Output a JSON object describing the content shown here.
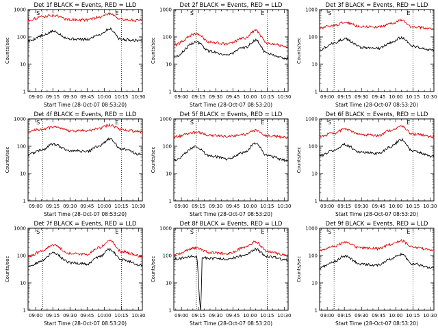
{
  "chart_data": [
    {
      "type": "line",
      "title": "Det 1f BLACK = Events, RED = LLD",
      "ylabel": "Counts/sec",
      "xlabel": "Start Time (28-Oct-07 08:53:20)",
      "x_ticks": [
        "09:00",
        "09:15",
        "09:30",
        "09:45",
        "10:00",
        "10:15",
        "10:30"
      ],
      "y_ticks": [
        "1",
        "10",
        "100",
        "1000"
      ],
      "ylim": [
        1,
        1000
      ],
      "y_scale": "log",
      "x_range": [
        "08:53:20",
        "10:33:20"
      ],
      "markers": [
        {
          "time": "09:06",
          "label": "S"
        },
        {
          "time": "10:15",
          "label": "E"
        }
      ],
      "series": [
        {
          "name": "Events",
          "color": "#000000",
          "time": [
            "08:53",
            "09:06",
            "09:15",
            "09:30",
            "09:45",
            "09:55",
            "10:05",
            "10:15",
            "10:33"
          ],
          "values": [
            70,
            110,
            160,
            85,
            80,
            120,
            195,
            80,
            75
          ]
        },
        {
          "name": "LLD",
          "color": "#e00000",
          "time": [
            "08:53",
            "09:06",
            "09:15",
            "09:30",
            "09:45",
            "09:55",
            "10:05",
            "10:15",
            "10:33"
          ],
          "values": [
            400,
            550,
            620,
            430,
            420,
            520,
            720,
            430,
            400
          ]
        }
      ]
    },
    {
      "type": "line",
      "title": "Det 2f BLACK = Events, RED = LLD",
      "ylabel": "Counts/sec",
      "xlabel": "Start Time (28-Oct-07 08:53:20)",
      "x_ticks": [
        "09:00",
        "09:15",
        "09:30",
        "09:45",
        "10:00",
        "10:15",
        "10:30"
      ],
      "y_ticks": [
        "1",
        "10",
        "100",
        "1000"
      ],
      "ylim": [
        1,
        1000
      ],
      "y_scale": "log",
      "x_range": [
        "08:53:20",
        "10:33:20"
      ],
      "markers": [
        {
          "time": "09:13",
          "label": "S"
        },
        {
          "time": "10:15",
          "label": "E"
        }
      ],
      "series": [
        {
          "name": "Events",
          "color": "#000000",
          "time": [
            "08:53",
            "09:13",
            "09:25",
            "09:40",
            "09:55",
            "10:05",
            "10:15",
            "10:33"
          ],
          "values": [
            18,
            65,
            30,
            22,
            40,
            75,
            25,
            16
          ]
        },
        {
          "name": "LLD",
          "color": "#e00000",
          "time": [
            "08:53",
            "09:13",
            "09:25",
            "09:40",
            "09:55",
            "10:05",
            "10:15",
            "10:33"
          ],
          "values": [
            50,
            130,
            65,
            55,
            90,
            170,
            60,
            45
          ]
        }
      ]
    },
    {
      "type": "line",
      "title": "Det 3f BLACK = Events, RED = LLD",
      "ylabel": "Counts/sec",
      "xlabel": "Start Time (28-Oct-07 08:53:20)",
      "x_ticks": [
        "09:00",
        "09:15",
        "09:30",
        "09:45",
        "10:00",
        "10:15",
        "10:30"
      ],
      "y_ticks": [
        "1",
        "10",
        "100",
        "1000"
      ],
      "ylim": [
        1,
        1000
      ],
      "y_scale": "log",
      "x_range": [
        "08:53:20",
        "10:33:20"
      ],
      "markers": [
        {
          "time": "09:06",
          "label": "S"
        },
        {
          "time": "10:15",
          "label": "E"
        }
      ],
      "series": [
        {
          "name": "Events",
          "color": "#000000",
          "time": [
            "08:53",
            "09:06",
            "09:15",
            "09:30",
            "09:45",
            "09:55",
            "10:05",
            "10:15",
            "10:33"
          ],
          "values": [
            35,
            60,
            85,
            42,
            38,
            60,
            95,
            45,
            33
          ]
        },
        {
          "name": "LLD",
          "color": "#e00000",
          "time": [
            "08:53",
            "09:06",
            "09:15",
            "09:30",
            "09:45",
            "09:55",
            "10:05",
            "10:15",
            "10:33"
          ],
          "values": [
            210,
            260,
            340,
            240,
            230,
            300,
            400,
            230,
            200
          ]
        }
      ]
    },
    {
      "type": "line",
      "title": "Det 4f BLACK = Events, RED = LLD",
      "ylabel": "Counts/sec",
      "xlabel": "Start Time (28-Oct-07 08:53:20)",
      "x_ticks": [
        "09:00",
        "09:15",
        "09:30",
        "09:45",
        "10:00",
        "10:15",
        "10:30"
      ],
      "y_ticks": [
        "1",
        "10",
        "100",
        "1000"
      ],
      "ylim": [
        1,
        1000
      ],
      "y_scale": "log",
      "x_range": [
        "08:53:20",
        "10:33:20"
      ],
      "markers": [
        {
          "time": "09:06",
          "label": "S"
        },
        {
          "time": "10:15",
          "label": "E"
        }
      ],
      "series": [
        {
          "name": "Events",
          "color": "#000000",
          "time": [
            "08:53",
            "09:06",
            "09:15",
            "09:30",
            "09:45",
            "09:55",
            "10:05",
            "10:15",
            "10:33"
          ],
          "values": [
            50,
            75,
            120,
            70,
            65,
            100,
            185,
            80,
            50
          ]
        },
        {
          "name": "LLD",
          "color": "#e00000",
          "time": [
            "08:53",
            "09:06",
            "09:15",
            "09:30",
            "09:45",
            "09:55",
            "10:05",
            "10:15",
            "10:33"
          ],
          "values": [
            350,
            420,
            500,
            370,
            370,
            450,
            600,
            400,
            340
          ]
        }
      ]
    },
    {
      "type": "line",
      "title": "Det 5f BLACK = Events, RED = LLD",
      "ylabel": "Counts/sec",
      "xlabel": "Start Time (28-Oct-07 08:53:20)",
      "x_ticks": [
        "09:00",
        "09:15",
        "09:30",
        "09:45",
        "10:00",
        "10:15",
        "10:30"
      ],
      "y_ticks": [
        "1",
        "10",
        "100",
        "1000"
      ],
      "ylim": [
        1,
        1000
      ],
      "y_scale": "log",
      "x_range": [
        "08:53:20",
        "10:33:20"
      ],
      "markers": [
        {
          "time": "09:13",
          "label": "S"
        },
        {
          "time": "10:15",
          "label": "E"
        }
      ],
      "series": [
        {
          "name": "Events",
          "color": "#000000",
          "time": [
            "08:53",
            "09:13",
            "09:25",
            "09:40",
            "09:55",
            "10:05",
            "10:15",
            "10:33"
          ],
          "values": [
            30,
            95,
            45,
            35,
            60,
            130,
            45,
            30
          ]
        },
        {
          "name": "LLD",
          "color": "#e00000",
          "time": [
            "08:53",
            "09:13",
            "09:25",
            "09:40",
            "09:55",
            "10:05",
            "10:15",
            "10:33"
          ],
          "values": [
            220,
            330,
            250,
            230,
            270,
            380,
            240,
            210
          ]
        }
      ]
    },
    {
      "type": "line",
      "title": "Det 6f BLACK = Events, RED = LLD",
      "ylabel": "Counts/sec",
      "xlabel": "Start Time (28-Oct-07 08:53:20)",
      "x_ticks": [
        "09:00",
        "09:15",
        "09:30",
        "09:45",
        "10:00",
        "10:15",
        "10:30"
      ],
      "y_ticks": [
        "1",
        "10",
        "100",
        "1000"
      ],
      "ylim": [
        1,
        1000
      ],
      "y_scale": "log",
      "x_range": [
        "08:53:20",
        "10:33:20"
      ],
      "markers": [
        {
          "time": "09:06",
          "label": "S"
        },
        {
          "time": "10:15",
          "label": "E"
        }
      ],
      "series": [
        {
          "name": "Events",
          "color": "#000000",
          "time": [
            "08:53",
            "09:06",
            "09:15",
            "09:30",
            "09:45",
            "09:55",
            "10:05",
            "10:15",
            "10:33"
          ],
          "values": [
            45,
            70,
            115,
            60,
            55,
            95,
            175,
            65,
            42
          ]
        },
        {
          "name": "LLD",
          "color": "#e00000",
          "time": [
            "08:53",
            "09:06",
            "09:15",
            "09:30",
            "09:45",
            "09:55",
            "10:05",
            "10:15",
            "10:33"
          ],
          "values": [
            230,
            300,
            420,
            260,
            250,
            380,
            530,
            280,
            220
          ]
        }
      ]
    },
    {
      "type": "line",
      "title": "Det 7f BLACK = Events, RED = LLD",
      "ylabel": "Counts/sec",
      "xlabel": "Start Time (28-Oct-07 08:53:20)",
      "x_ticks": [
        "09:00",
        "09:15",
        "09:30",
        "09:45",
        "10:00",
        "10:15",
        "10:30"
      ],
      "y_ticks": [
        "1",
        "10",
        "100",
        "1000"
      ],
      "ylim": [
        1,
        1000
      ],
      "y_scale": "log",
      "x_range": [
        "08:53:20",
        "10:33:20"
      ],
      "markers": [
        {
          "time": "09:06",
          "label": "S"
        },
        {
          "time": "10:15",
          "label": "E"
        }
      ],
      "series": [
        {
          "name": "Events",
          "color": "#000000",
          "time": [
            "08:53",
            "09:06",
            "09:15",
            "09:30",
            "09:45",
            "09:55",
            "10:05",
            "10:15",
            "10:33"
          ],
          "values": [
            40,
            65,
            130,
            55,
            50,
            90,
            170,
            70,
            45
          ]
        },
        {
          "name": "LLD",
          "color": "#e00000",
          "time": [
            "08:53",
            "09:06",
            "09:15",
            "09:30",
            "09:45",
            "09:55",
            "10:05",
            "10:15",
            "10:33"
          ],
          "values": [
            90,
            150,
            250,
            120,
            110,
            200,
            350,
            140,
            95
          ]
        }
      ]
    },
    {
      "type": "line",
      "title": "Det 8f BLACK = Events, RED = LLD",
      "ylabel": "Counts/sec",
      "xlabel": "Start Time (28-Oct-07 08:53:20)",
      "x_ticks": [
        "09:00",
        "09:15",
        "09:30",
        "09:45",
        "10:00",
        "10:15",
        "10:30"
      ],
      "y_ticks": [
        "1",
        "10",
        "100",
        "1000"
      ],
      "ylim": [
        1,
        1000
      ],
      "y_scale": "log",
      "x_range": [
        "08:53:20",
        "10:33:20"
      ],
      "markers": [
        {
          "time": "09:13",
          "label": "S"
        },
        {
          "time": "10:15",
          "label": "E"
        }
      ],
      "series": [
        {
          "name": "Events",
          "color": "#000000",
          "time": [
            "08:53",
            "09:13",
            "09:17",
            "09:18",
            "09:25",
            "09:40",
            "09:55",
            "10:05",
            "10:15",
            "10:33"
          ],
          "values": [
            75,
            95,
            1,
            85,
            80,
            75,
            100,
            170,
            95,
            70
          ]
        },
        {
          "name": "LLD",
          "color": "#e00000",
          "time": [
            "08:53",
            "09:13",
            "09:25",
            "09:40",
            "09:55",
            "10:05",
            "10:15",
            "10:33"
          ],
          "values": [
            110,
            190,
            130,
            120,
            190,
            320,
            140,
            105
          ]
        }
      ]
    },
    {
      "type": "line",
      "title": "Det 9f BLACK = Events, RED = LLD",
      "ylabel": "Counts/sec",
      "xlabel": "Start Time (28-Oct-07 08:53:20)",
      "x_ticks": [
        "09:00",
        "09:15",
        "09:30",
        "09:45",
        "10:00",
        "10:15",
        "10:30"
      ],
      "y_ticks": [
        "1",
        "10",
        "100",
        "1000"
      ],
      "ylim": [
        1,
        1000
      ],
      "y_scale": "log",
      "x_range": [
        "08:53:20",
        "10:33:20"
      ],
      "markers": [
        {
          "time": "09:06",
          "label": "S"
        },
        {
          "time": "10:15",
          "label": "E"
        }
      ],
      "series": [
        {
          "name": "Events",
          "color": "#000000",
          "time": [
            "08:53",
            "09:06",
            "09:15",
            "09:30",
            "09:45",
            "09:55",
            "10:05",
            "10:15",
            "10:33"
          ],
          "values": [
            35,
            60,
            95,
            48,
            45,
            75,
            110,
            50,
            35
          ]
        },
        {
          "name": "LLD",
          "color": "#e00000",
          "time": [
            "08:53",
            "09:06",
            "09:15",
            "09:30",
            "09:45",
            "09:55",
            "10:05",
            "10:15",
            "10:33"
          ],
          "values": [
            160,
            220,
            300,
            190,
            180,
            250,
            350,
            200,
            160
          ]
        }
      ]
    }
  ]
}
